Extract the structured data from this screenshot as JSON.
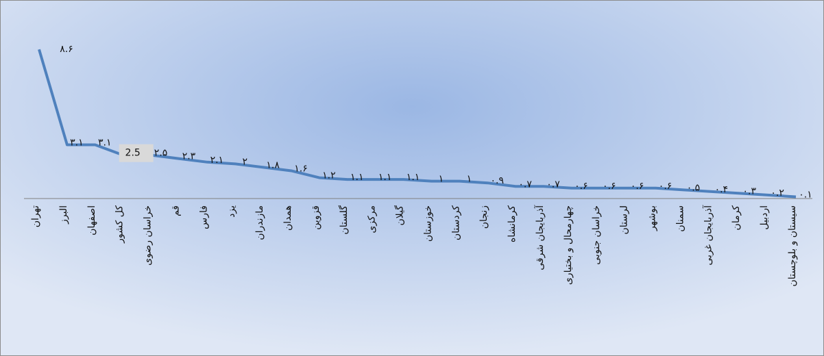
{
  "chart_data": {
    "type": "line",
    "categories": [
      "تهران",
      "البرز",
      "اصفهان",
      "کل کشور",
      "خراسان رضوی",
      "قم",
      "فارس",
      "یزد",
      "مازندران",
      "همدان",
      "قزوین",
      "گلستان",
      "مرکزی",
      "گیلان",
      "خوزستان",
      "کردستان",
      "زنجان",
      "کرمانشاه",
      "آذربایجان شرقی",
      "چهارمحال و بختیاری",
      "خراسان جنوبی",
      "لرستان",
      "بوشهر",
      "سمنان",
      "آذربایجان غربی",
      "کرمان",
      "اردبیل",
      "سیستان و بلوچستان"
    ],
    "series": [
      {
        "color": "#4f81bd",
        "values": [
          8.6,
          3.1,
          3.1,
          2.5,
          2.5,
          2.3,
          2.1,
          2,
          1.8,
          1.6,
          1.2,
          1.1,
          1.1,
          1.1,
          1,
          1,
          0.9,
          0.7,
          0.7,
          0.6,
          0.6,
          0.6,
          0.6,
          0.5,
          0.4,
          0.3,
          0.2,
          0.1
        ],
        "value_labels": [
          "۸.۶",
          "۳.۱",
          "۳.۱",
          "2.5",
          "۲.۵",
          "۲.۳",
          "۲.۱",
          "۲",
          "۱.۸",
          "۱.۶",
          "۱.۲",
          "۱.۱",
          "۱.۱",
          "۱.۱",
          "۱",
          "۱",
          "۰.۹",
          "۰.۷",
          "۰.۷",
          "۰.۶",
          "۰.۶",
          "۰.۶",
          "۰.۶",
          "۰.۵",
          "۰.۴",
          "۰.۳",
          "۰.۲",
          "۰.۱"
        ]
      }
    ],
    "highlight_index": 3,
    "ylim": [
      0,
      9
    ]
  }
}
